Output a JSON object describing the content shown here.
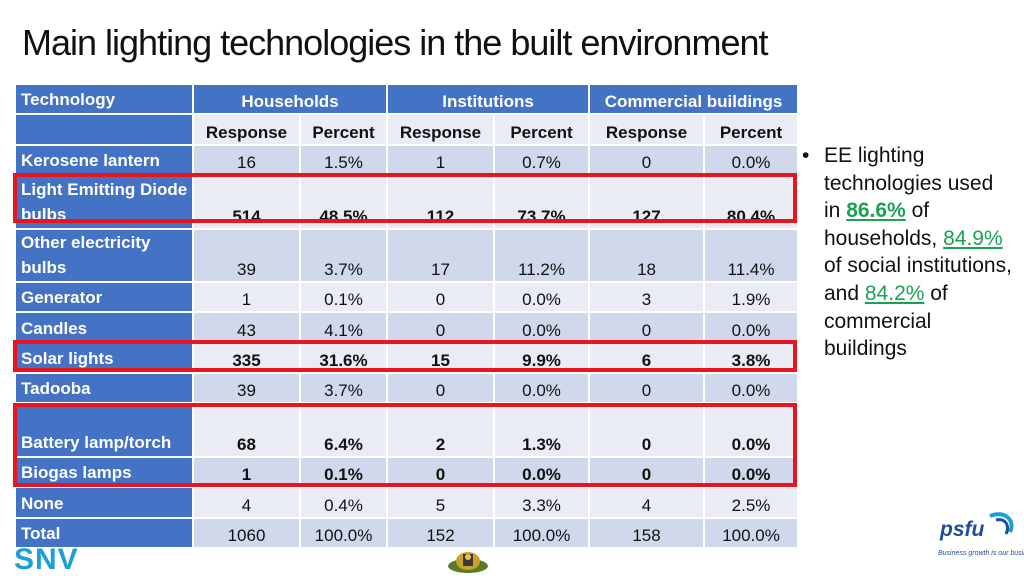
{
  "title": "Main lighting technologies in the built environment",
  "table": {
    "col_technology": "Technology",
    "groups": [
      "Households",
      "Institutions",
      "Commercial buildings"
    ],
    "subheaders": [
      "Response",
      "Percent",
      "Response",
      "Percent",
      "Response",
      "Percent"
    ],
    "rows": [
      {
        "tech": "Kerosene lantern",
        "values": [
          "16",
          "1.5%",
          "1",
          "0.7%",
          "0",
          "0.0%"
        ]
      },
      {
        "tech": "Light Emitting Diode bulbs",
        "values": [
          "514",
          "48.5%",
          "112",
          "73.7%",
          "127",
          "80.4%"
        ]
      },
      {
        "tech": "Other electricity bulbs",
        "values": [
          "39",
          "3.7%",
          "17",
          "11.2%",
          "18",
          "11.4%"
        ]
      },
      {
        "tech": "Generator",
        "values": [
          "1",
          "0.1%",
          "0",
          "0.0%",
          "3",
          "1.9%"
        ]
      },
      {
        "tech": "Candles",
        "values": [
          "43",
          "4.1%",
          "0",
          "0.0%",
          "0",
          "0.0%"
        ]
      },
      {
        "tech": "Solar lights",
        "values": [
          "335",
          "31.6%",
          "15",
          "9.9%",
          "6",
          "3.8%"
        ]
      },
      {
        "tech": "Tadooba",
        "values": [
          "39",
          "3.7%",
          "0",
          "0.0%",
          "0",
          "0.0%"
        ]
      },
      {
        "tech": "Battery lamp/torch",
        "values": [
          "68",
          "6.4%",
          "2",
          "1.3%",
          "0",
          "0.0%"
        ]
      },
      {
        "tech": "Biogas lamps",
        "values": [
          "1",
          "0.1%",
          "0",
          "0.0%",
          "0",
          "0.0%"
        ]
      },
      {
        "tech": "None",
        "values": [
          "4",
          "0.4%",
          "5",
          "3.3%",
          "4",
          "2.5%"
        ]
      },
      {
        "tech": "Total",
        "values": [
          "1060",
          "100.0%",
          "152",
          "100.0%",
          "158",
          "100.0%"
        ]
      }
    ]
  },
  "bullet": {
    "symbol": "•",
    "p1": "EE lighting technologies used in ",
    "v1": "86.6%",
    "p2": " of households, ",
    "v2": "84.9%",
    "p3": " of social institutions, and ",
    "v3": "84.2%",
    "p4": " of commercial buildings"
  },
  "logos": {
    "snv": "SNV",
    "psfu": "psfu",
    "psfu_tagline": "Business growth is our business",
    "colors": {
      "snv": "#1ba0d8",
      "psfu": "#1e4f9c",
      "highlight": "#e8151e",
      "header": "#4472c4",
      "accent": "#1aa152"
    }
  }
}
